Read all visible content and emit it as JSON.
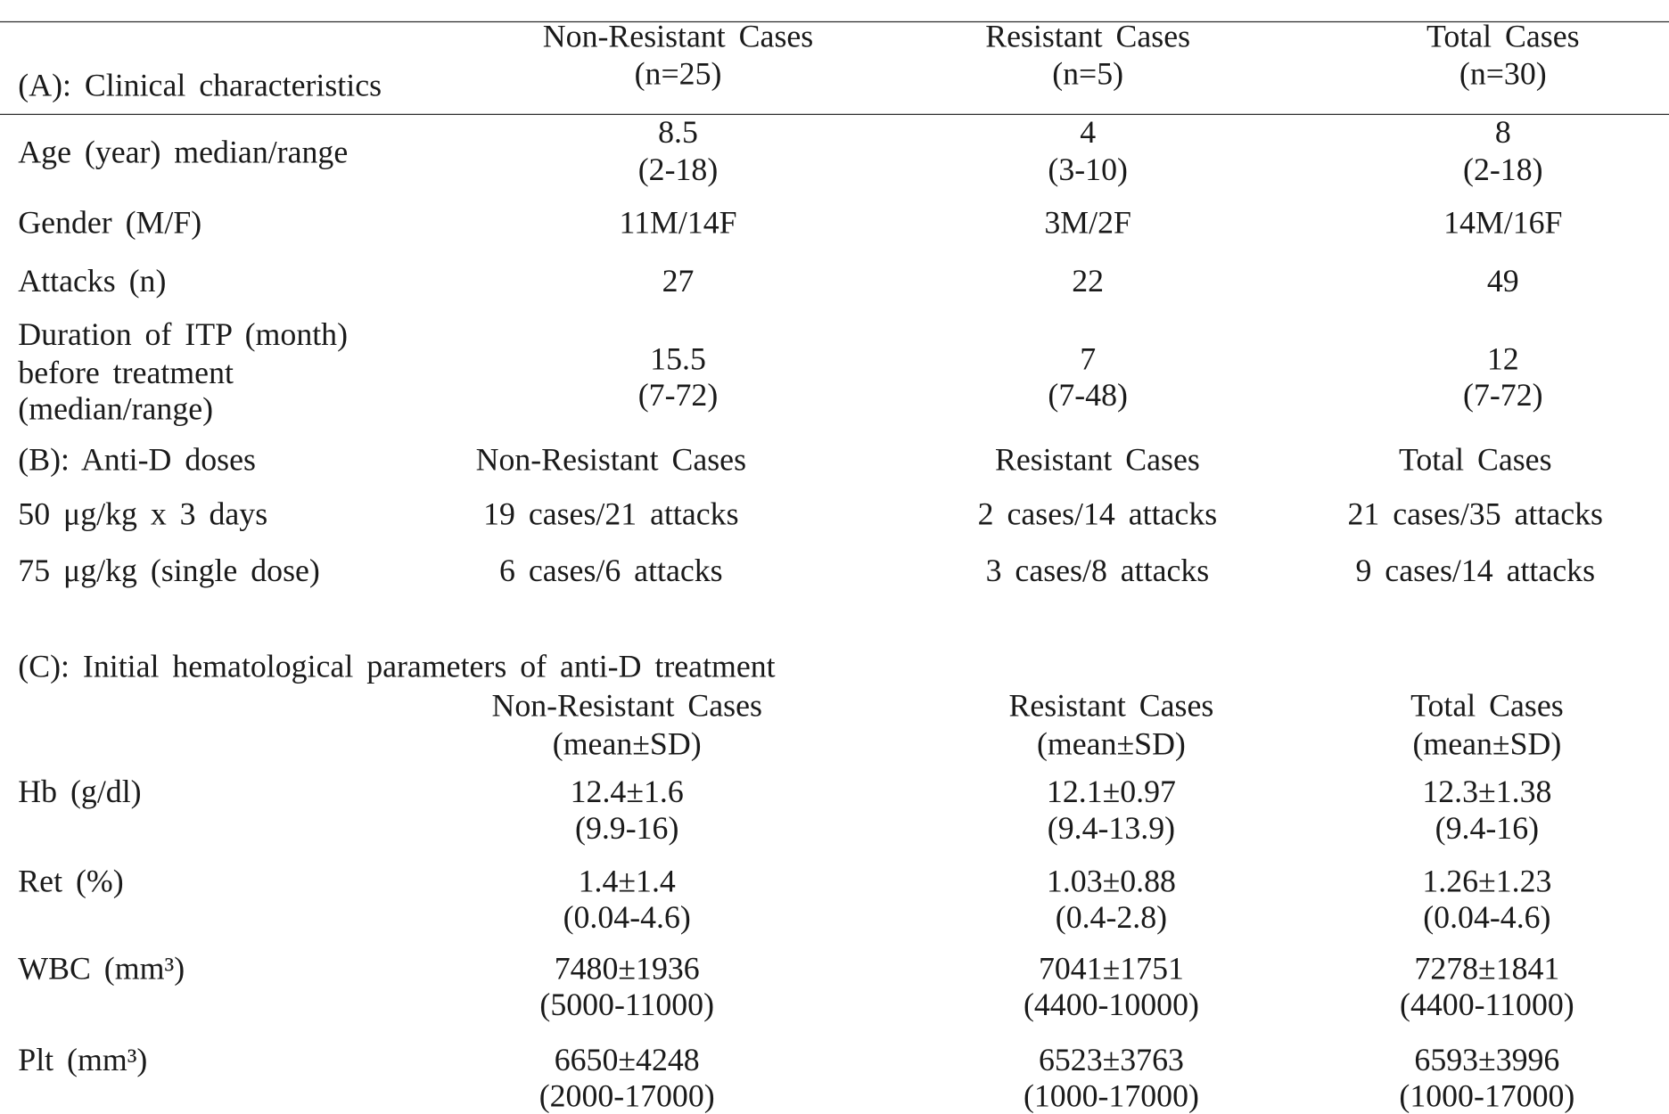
{
  "section_a": {
    "title": "(A): Clinical characteristics",
    "columns": [
      [
        "Non-Resistant Cases",
        "(n=25)"
      ],
      [
        "Resistant Cases",
        "(n=5)"
      ],
      [
        "Total Cases",
        "(n=30)"
      ]
    ],
    "rows": [
      {
        "label": [
          "Age (year) median/range"
        ],
        "cells": [
          [
            "8.5",
            "(2-18)"
          ],
          [
            "4",
            "(3-10)"
          ],
          [
            "8",
            "(2-18)"
          ]
        ]
      },
      {
        "label": [
          "Gender (M/F)"
        ],
        "cells": [
          [
            "11M/14F"
          ],
          [
            "3M/2F"
          ],
          [
            "14M/16F"
          ]
        ]
      },
      {
        "label": [
          "Attacks (n)"
        ],
        "cells": [
          [
            "27"
          ],
          [
            "22"
          ],
          [
            "49"
          ]
        ]
      },
      {
        "label": [
          "Duration of ITP (month)",
          "before treatment",
          "(median/range)"
        ],
        "cells": [
          [
            "15.5",
            "(7-72)"
          ],
          [
            "7",
            "(7-48)"
          ],
          [
            "12",
            "(7-72)"
          ]
        ]
      }
    ]
  },
  "section_b": {
    "title": "(B): Anti-D doses",
    "columns": [
      "Non-Resistant Cases",
      "Resistant Cases",
      "Total Cases"
    ],
    "rows": [
      {
        "label": "50 μg/kg x 3 days",
        "cells": [
          "19 cases/21 attacks",
          "2 cases/14 attacks",
          "21 cases/35 attacks"
        ]
      },
      {
        "label": "75 μg/kg (single dose)",
        "cells": [
          "6 cases/6 attacks",
          "3 cases/8 attacks",
          "9 cases/14 attacks"
        ]
      }
    ]
  },
  "section_c": {
    "title": "(C): Initial hematological parameters of anti-D treatment",
    "columns": [
      [
        "Non-Resistant Cases",
        "(mean±SD)"
      ],
      [
        "Resistant Cases",
        "(mean±SD)"
      ],
      [
        "Total Cases",
        "(mean±SD)"
      ]
    ],
    "rows": [
      {
        "label": "Hb (g/dl)",
        "cells": [
          [
            "12.4±1.6",
            "(9.9-16)"
          ],
          [
            "12.1±0.97",
            "(9.4-13.9)"
          ],
          [
            "12.3±1.38",
            "(9.4-16)"
          ]
        ]
      },
      {
        "label": "Ret (%)",
        "cells": [
          [
            "1.4±1.4",
            "(0.04-4.6)"
          ],
          [
            "1.03±0.88",
            "(0.4-2.8)"
          ],
          [
            "1.26±1.23",
            "(0.04-4.6)"
          ]
        ]
      },
      {
        "label": "WBC (mm³)",
        "cells": [
          [
            "7480±1936",
            "(5000-11000)"
          ],
          [
            "7041±1751",
            "(4400-10000)"
          ],
          [
            "7278±1841",
            "(4400-11000)"
          ]
        ]
      },
      {
        "label": "Plt (mm³)",
        "cells": [
          [
            "6650±4248",
            "(2000-17000)"
          ],
          [
            "6523±3763",
            "(1000-17000)"
          ],
          [
            "6593±3996",
            "(1000-17000)"
          ]
        ]
      }
    ]
  }
}
